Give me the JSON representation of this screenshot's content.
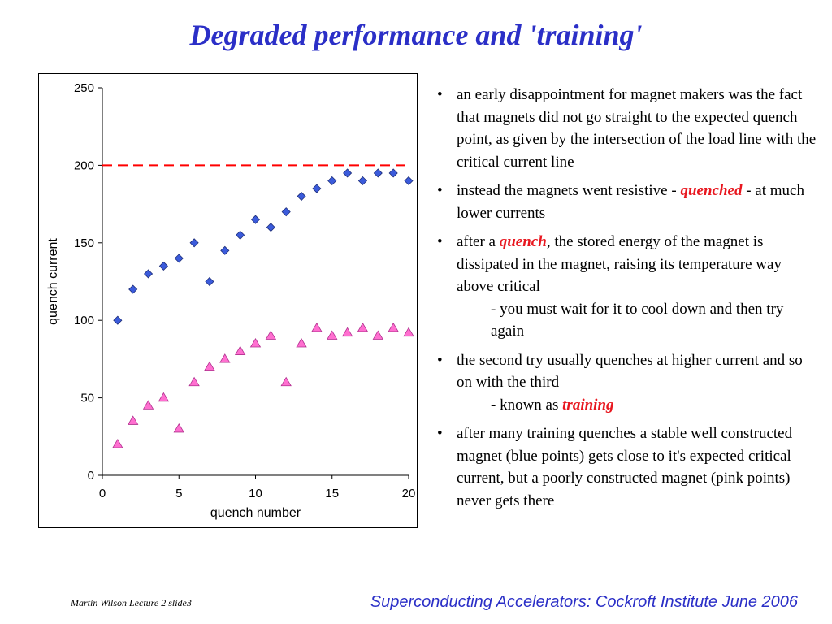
{
  "slide": {
    "title": "Degraded performance and 'training'",
    "footer_left": "Martin Wilson Lecture 2 slide3",
    "footer_right": "Superconducting Accelerators:  Cockroft Institute June 2006"
  },
  "bullets": {
    "b1": "an early disappointment for magnet makers was the fact that magnets did not go straight to the expected quench point, as given by the intersection of the load line with the critical current line",
    "b2_pre": "instead the magnets went resistive - ",
    "b2_em": "quenched",
    "b2_post": " - at much lower currents",
    "b3_pre": "after a ",
    "b3_em": "quench",
    "b3_post": ", the stored energy of the magnet is dissipated in the magnet, raising its temperature way above critical",
    "b3_sub": "- you must wait for it to cool down and then try again",
    "b4": "the second try usually quenches at higher current and so on with the third",
    "b4_sub_pre": "- known as ",
    "b4_sub_em": "training",
    "b5": "after many training quenches a stable well constructed magnet (blue points) gets close to it's expected critical current, but a poorly constructed magnet (pink points) never gets there"
  },
  "chart_data": {
    "type": "scatter",
    "xlabel": "quench number",
    "ylabel": "quench current",
    "xlim": [
      0,
      20
    ],
    "ylim": [
      0,
      250
    ],
    "xticks": [
      0,
      5,
      10,
      15,
      20
    ],
    "yticks": [
      0,
      50,
      100,
      150,
      200,
      250
    ],
    "reference_line": {
      "y": 200,
      "style": "dashed",
      "color": "#ff0000"
    },
    "series": [
      {
        "marker": "diamond",
        "color": "#3b5bdb",
        "x": [
          1,
          2,
          3,
          4,
          5,
          6,
          7,
          8,
          9,
          10,
          11,
          12,
          13,
          14,
          15,
          16,
          17,
          18,
          19,
          20
        ],
        "y": [
          100,
          120,
          130,
          135,
          140,
          150,
          125,
          145,
          155,
          165,
          160,
          170,
          180,
          185,
          190,
          195,
          190,
          195,
          195,
          190
        ]
      },
      {
        "marker": "triangle",
        "color": "#ff6fd0",
        "x": [
          1,
          2,
          3,
          4,
          5,
          6,
          7,
          8,
          9,
          10,
          11,
          12,
          13,
          14,
          15,
          16,
          17,
          18,
          19,
          20
        ],
        "y": [
          20,
          35,
          45,
          50,
          30,
          60,
          70,
          75,
          80,
          85,
          90,
          60,
          85,
          95,
          90,
          92,
          95,
          90,
          95,
          92
        ]
      }
    ]
  }
}
